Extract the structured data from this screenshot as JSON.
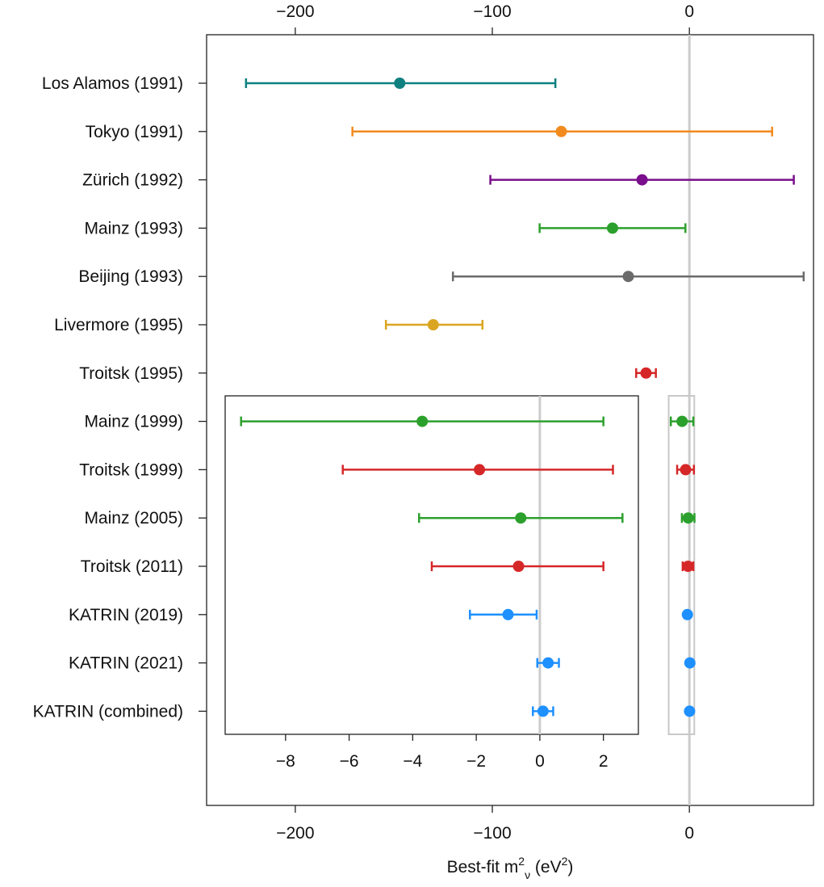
{
  "chart_data": [
    {
      "type": "scatter",
      "subtype": "error-bar",
      "title": "",
      "xlabel": "Best-fit m",
      "xlabel_sub": "ν",
      "xlabel_sup": "2",
      "xlabel_unit_open": " (eV",
      "xlabel_unit_sup": "2",
      "xlabel_unit_close": ")",
      "ylabel": "",
      "xlim": [
        -245,
        63
      ],
      "x_ticks": [
        -200,
        -100,
        0
      ],
      "x_tick_labels": [
        "−200",
        "−100",
        "0"
      ],
      "x_tick_positions": [
        "top",
        "bottom"
      ],
      "zero_line": true,
      "grid": false,
      "series": [
        {
          "label": "Los Alamos (1991)",
          "value": -147,
          "lower": -225,
          "upper": -68,
          "color": "#0f8080"
        },
        {
          "label": "Tokyo (1991)",
          "value": -65,
          "lower": -171,
          "upper": 42,
          "color": "#f28a1e"
        },
        {
          "label": "Zürich (1992)",
          "value": -24,
          "lower": -101,
          "upper": 53,
          "color": "#7a0e8c"
        },
        {
          "label": "Mainz (1993)",
          "value": -39,
          "lower": -76,
          "upper": -2,
          "color": "#2ca02c"
        },
        {
          "label": "Beijing (1993)",
          "value": -31,
          "lower": -120,
          "upper": 58,
          "color": "#6b6b6b"
        },
        {
          "label": "Livermore (1995)",
          "value": -130,
          "lower": -154,
          "upper": -105,
          "color": "#daa520"
        },
        {
          "label": "Troitsk (1995)",
          "value": -22,
          "lower": -27,
          "upper": -17,
          "color": "#d62728"
        },
        {
          "label": "Mainz (1999)",
          "value": -3.7,
          "lower": -9.4,
          "upper": 2.0,
          "color": "#2ca02c"
        },
        {
          "label": "Troitsk (1999)",
          "value": -1.9,
          "lower": -6.2,
          "upper": 2.3,
          "color": "#d62728"
        },
        {
          "label": "Mainz (2005)",
          "value": -0.6,
          "lower": -3.8,
          "upper": 2.6,
          "color": "#2ca02c"
        },
        {
          "label": "Troitsk (2011)",
          "value": -0.67,
          "lower": -3.4,
          "upper": 2.0,
          "color": "#d62728"
        },
        {
          "label": "KATRIN (2019)",
          "value": -1.0,
          "lower": -2.2,
          "upper": -0.1,
          "color": "#1e90ff"
        },
        {
          "label": "KATRIN (2021)",
          "value": 0.26,
          "lower": -0.08,
          "upper": 0.6,
          "color": "#1e90ff"
        },
        {
          "label": "KATRIN (combined)",
          "value": 0.1,
          "lower": -0.22,
          "upper": 0.42,
          "color": "#1e90ff"
        }
      ]
    },
    {
      "type": "scatter",
      "subtype": "error-bar-inset",
      "title": "",
      "applies_to": [
        "Mainz (1999)",
        "Troitsk (1999)",
        "Mainz (2005)",
        "Troitsk (2011)",
        "KATRIN (2019)",
        "KATRIN (2021)",
        "KATRIN (combined)"
      ],
      "xlim": [
        -9.9,
        3.1
      ],
      "x_ticks": [
        -8,
        -6,
        -4,
        -2,
        0,
        2
      ],
      "x_tick_labels": [
        "−8",
        "−6",
        "−4",
        "−2",
        "0",
        "2"
      ],
      "zero_line": true,
      "zoom_region_xlim": [
        -10.5,
        2.5
      ]
    }
  ]
}
